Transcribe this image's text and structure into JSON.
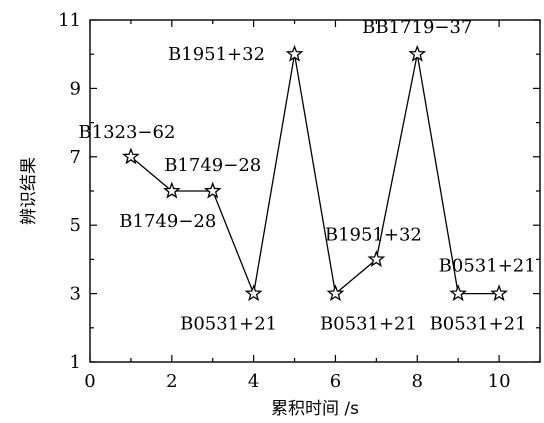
{
  "chart_data": {
    "type": "line",
    "xlabel": "累积时间 /s",
    "ylabel": "辨识结果",
    "xlim": [
      0,
      11
    ],
    "ylim": [
      1,
      11
    ],
    "x_ticks": [
      0,
      2,
      4,
      6,
      8,
      10
    ],
    "y_ticks": [
      1,
      3,
      5,
      7,
      9,
      11
    ],
    "grid": false,
    "marker": "star",
    "series": [
      {
        "x": [
          1,
          2,
          3,
          4,
          5,
          6,
          7,
          8,
          9,
          10
        ],
        "y": [
          7,
          6,
          6,
          3,
          10,
          3,
          4,
          10,
          3,
          3
        ]
      }
    ],
    "point_labels": [
      {
        "x": 1,
        "y": 7,
        "text": "B1323−62"
      },
      {
        "x": 2,
        "y": 6,
        "text": "B1749−28"
      },
      {
        "x": 3,
        "y": 6,
        "text": "B1749−28"
      },
      {
        "x": 4,
        "y": 3,
        "text": "B0531+21"
      },
      {
        "x": 5,
        "y": 10,
        "text": "B1951+32"
      },
      {
        "x": 6,
        "y": 3,
        "text": "B0531+21"
      },
      {
        "x": 7,
        "y": 4,
        "text": "B1951+32"
      },
      {
        "x": 8,
        "y": 10,
        "text": "BB1719−37"
      },
      {
        "x": 9,
        "y": 3,
        "text": "B0531+21"
      },
      {
        "x": 10,
        "y": 3,
        "text": "B0531+21"
      }
    ],
    "color": "#000000"
  }
}
